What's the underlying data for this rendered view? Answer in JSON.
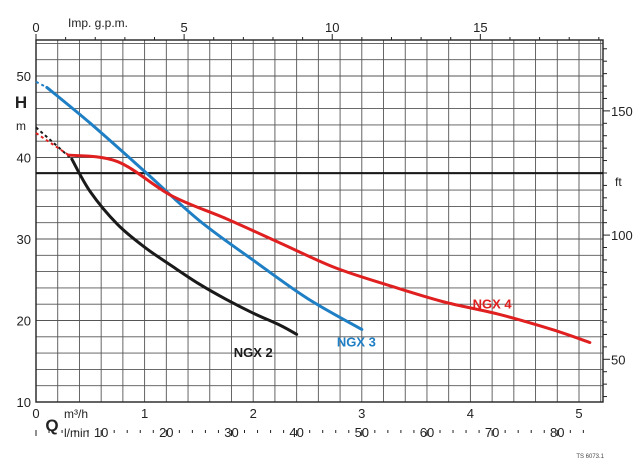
{
  "chart_data": {
    "type": "line",
    "title": "",
    "xlabel": "Q",
    "ylabel": "H",
    "x_unit_m3h": "m³/h",
    "x_unit_lmin": "l/min",
    "x_unit_gpm": "Imp. g.p.m.",
    "y_unit_m": "m",
    "y_unit_ft": "ft",
    "xlim_m3h": [
      0,
      5.2
    ],
    "ylim_m": [
      10,
      55
    ],
    "grid": true,
    "ticks_m3h": [
      0,
      1,
      2,
      3,
      4,
      5
    ],
    "ticks_lmin": [
      10,
      20,
      30,
      40,
      50,
      60,
      70,
      80
    ],
    "ticks_gpm": [
      0,
      5,
      10,
      15
    ],
    "ticks_m": [
      10,
      20,
      30,
      40,
      50
    ],
    "ticks_ft": [
      50,
      100,
      150
    ],
    "series": [
      {
        "name": "NGX 2",
        "color": "#1a1a1a",
        "x": [
          0.33,
          0.5,
          0.75,
          1.0,
          1.25,
          1.5,
          1.75,
          2.0,
          2.25,
          2.4
        ],
        "y": [
          39.8,
          35.8,
          31.8,
          29.0,
          26.7,
          24.5,
          22.6,
          20.9,
          19.4,
          18.3
        ],
        "dashed_x": [
          0.0,
          0.33
        ],
        "dashed_y": [
          43.7,
          39.8
        ]
      },
      {
        "name": "NGX 3",
        "color": "#1f7fc4",
        "x": [
          0.1,
          0.5,
          1.0,
          1.5,
          2.0,
          2.5,
          3.0
        ],
        "y": [
          48.6,
          44.2,
          38.3,
          32.3,
          27.4,
          22.7,
          18.9
        ],
        "dashed_x": [
          0.0,
          0.1
        ],
        "dashed_y": [
          49.3,
          48.6
        ]
      },
      {
        "name": "NGX 4",
        "color": "#e02020",
        "x": [
          0.3,
          0.75,
          1.25,
          1.75,
          2.25,
          2.75,
          3.25,
          3.75,
          4.25,
          4.75,
          5.1
        ],
        "y": [
          40.3,
          39.5,
          35.3,
          32.5,
          29.5,
          26.5,
          24.3,
          22.3,
          20.8,
          18.9,
          17.3
        ],
        "dashed_x": [
          0.0,
          0.3
        ],
        "dashed_y": [
          43.0,
          40.3
        ]
      }
    ],
    "corner_code": "TS 6073.1"
  }
}
